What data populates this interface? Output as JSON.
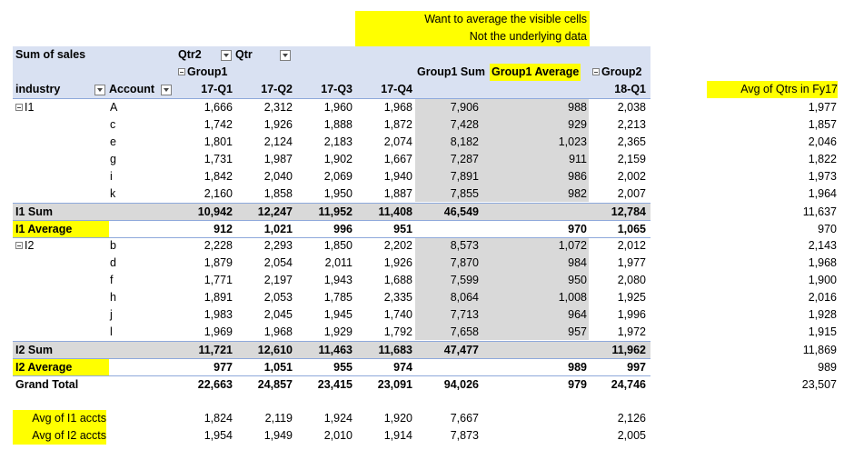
{
  "note": {
    "line1": "Want to average the visible cells",
    "line2": "Not the underlying data"
  },
  "header": {
    "sum_of_sales": "Sum of sales",
    "qtr2": "Qtr2",
    "qtr": "Qtr",
    "group1": "Group1",
    "group1_sum": "Group1 Sum",
    "group1_average": "Group1 Average",
    "group2": "Group2",
    "industry": "industry",
    "account": "Account",
    "cols": [
      "17-Q1",
      "17-Q2",
      "17-Q3",
      "17-Q4"
    ],
    "col_18q1": "18-Q1",
    "avg_fy17": "Avg of Qtrs in Fy17"
  },
  "industries": [
    {
      "name": "I1",
      "rows": [
        {
          "account": "A",
          "q": [
            "1,666",
            "2,312",
            "1,960",
            "1,968"
          ],
          "sum": "7,906",
          "avg": "988",
          "q18": "2,038",
          "fy17": "1,977"
        },
        {
          "account": "c",
          "q": [
            "1,742",
            "1,926",
            "1,888",
            "1,872"
          ],
          "sum": "7,428",
          "avg": "929",
          "q18": "2,213",
          "fy17": "1,857"
        },
        {
          "account": "e",
          "q": [
            "1,801",
            "2,124",
            "2,183",
            "2,074"
          ],
          "sum": "8,182",
          "avg": "1,023",
          "q18": "2,365",
          "fy17": "2,046"
        },
        {
          "account": "g",
          "q": [
            "1,731",
            "1,987",
            "1,902",
            "1,667"
          ],
          "sum": "7,287",
          "avg": "911",
          "q18": "2,159",
          "fy17": "1,822"
        },
        {
          "account": "i",
          "q": [
            "1,842",
            "2,040",
            "2,069",
            "1,940"
          ],
          "sum": "7,891",
          "avg": "986",
          "q18": "2,002",
          "fy17": "1,973"
        },
        {
          "account": "k",
          "q": [
            "2,160",
            "1,858",
            "1,950",
            "1,887"
          ],
          "sum": "7,855",
          "avg": "982",
          "q18": "2,007",
          "fy17": "1,964"
        }
      ],
      "sum_label": "I1 Sum",
      "sum": {
        "q": [
          "10,942",
          "12,247",
          "11,952",
          "11,408"
        ],
        "sum": "46,549",
        "avg": "",
        "q18": "12,784",
        "fy17": "11,637"
      },
      "avg_label": "I1 Average",
      "avg": {
        "q": [
          "912",
          "1,021",
          "996",
          "951"
        ],
        "sum": "",
        "avg": "970",
        "q18": "1,065",
        "fy17": "970"
      }
    },
    {
      "name": "I2",
      "rows": [
        {
          "account": "b",
          "q": [
            "2,228",
            "2,293",
            "1,850",
            "2,202"
          ],
          "sum": "8,573",
          "avg": "1,072",
          "q18": "2,012",
          "fy17": "2,143"
        },
        {
          "account": "d",
          "q": [
            "1,879",
            "2,054",
            "2,011",
            "1,926"
          ],
          "sum": "7,870",
          "avg": "984",
          "q18": "1,977",
          "fy17": "1,968"
        },
        {
          "account": "f",
          "q": [
            "1,771",
            "2,197",
            "1,943",
            "1,688"
          ],
          "sum": "7,599",
          "avg": "950",
          "q18": "2,080",
          "fy17": "1,900"
        },
        {
          "account": "h",
          "q": [
            "1,891",
            "2,053",
            "1,785",
            "2,335"
          ],
          "sum": "8,064",
          "avg": "1,008",
          "q18": "1,925",
          "fy17": "2,016"
        },
        {
          "account": "j",
          "q": [
            "1,983",
            "2,045",
            "1,945",
            "1,740"
          ],
          "sum": "7,713",
          "avg": "964",
          "q18": "1,996",
          "fy17": "1,928"
        },
        {
          "account": "l",
          "q": [
            "1,969",
            "1,968",
            "1,929",
            "1,792"
          ],
          "sum": "7,658",
          "avg": "957",
          "q18": "1,972",
          "fy17": "1,915"
        }
      ],
      "sum_label": "I2 Sum",
      "sum": {
        "q": [
          "11,721",
          "12,610",
          "11,463",
          "11,683"
        ],
        "sum": "47,477",
        "avg": "",
        "q18": "11,962",
        "fy17": "11,869"
      },
      "avg_label": "I2 Average",
      "avg": {
        "q": [
          "977",
          "1,051",
          "955",
          "974"
        ],
        "sum": "",
        "avg": "989",
        "q18": "997",
        "fy17": "989"
      }
    }
  ],
  "grand_total": {
    "label": "Grand Total",
    "q": [
      "22,663",
      "24,857",
      "23,415",
      "23,091"
    ],
    "sum": "94,026",
    "avg": "979",
    "q18": "24,746",
    "fy17": "23,507"
  },
  "extra": [
    {
      "label": "Avg of I1 accts",
      "q": [
        "1,824",
        "2,119",
        "1,924",
        "1,920"
      ],
      "sum": "7,667",
      "q18": "2,126"
    },
    {
      "label": "Avg of I2 accts",
      "q": [
        "1,954",
        "1,949",
        "2,010",
        "1,914"
      ],
      "sum": "7,873",
      "q18": "2,005"
    }
  ]
}
